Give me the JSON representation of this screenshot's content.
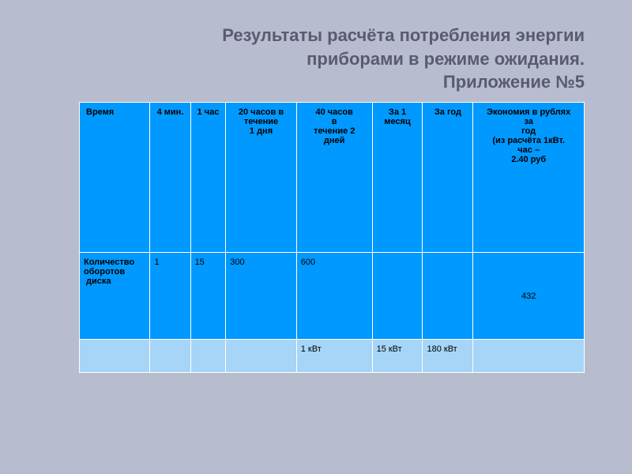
{
  "title": {
    "line1": "Результаты расчёта потребления энергии",
    "line2": "приборами в режиме ожидания.",
    "line3": "Приложение №5"
  },
  "table": {
    "headers": {
      "col1": "Время",
      "col2": "4 мин.",
      "col3": "1 час",
      "col4": "20 часов в течение 1 дня",
      "col5": "40 часов в течение 2 дней",
      "col6": "За 1 месяц",
      "col7": "За год",
      "col8": "Экономия в рублях за год (из расчёта 1кВт. час – 2.40 руб"
    },
    "row1": {
      "label": "Количество оборотов диска",
      "col2": "1",
      "col3": "15",
      "col4": "300",
      "col5": "600",
      "col6": "",
      "col7": "",
      "col8": "432"
    },
    "row2": {
      "col1": "",
      "col2": "",
      "col3": "",
      "col4": "",
      "col5": "1 кВт",
      "col6": "15 кВт",
      "col7": "180 кВт",
      "col8": ""
    }
  },
  "colors": {
    "background": "#b8bccf",
    "title_color": "#5a5a70",
    "header_bg": "#0099ff",
    "row1_bg": "#0099ff",
    "row2_bg": "#a6d5f7",
    "border": "#ffffff"
  }
}
